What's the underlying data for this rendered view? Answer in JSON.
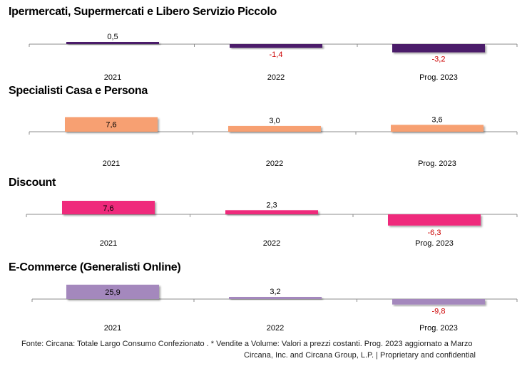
{
  "chart_data": [
    {
      "type": "bar",
      "title": "Ipermercati, Supermercati e Libero Servizio Piccolo",
      "categories": [
        "2021",
        "2022",
        "Prog. 2023"
      ],
      "values": [
        0.5,
        -1.4,
        -3.2
      ],
      "value_labels": [
        "0,5",
        "-1,4",
        "-3,2"
      ],
      "color": "#4b1a6b"
    },
    {
      "type": "bar",
      "title": "Specialisti Casa e Persona",
      "categories": [
        "2021",
        "2022",
        "Prog. 2023"
      ],
      "values": [
        7.6,
        3.0,
        3.6
      ],
      "value_labels": [
        "7,6",
        "3,0",
        "3,6"
      ],
      "color": "#f7a072"
    },
    {
      "type": "bar",
      "title": "Discount",
      "categories": [
        "2021",
        "2022",
        "Prog. 2023"
      ],
      "values": [
        7.6,
        2.3,
        -6.3
      ],
      "value_labels": [
        "7,6",
        "2,3",
        "-6,3"
      ],
      "color": "#ef2b7c"
    },
    {
      "type": "bar",
      "title": "E-Commerce (Generalisti Online)",
      "categories": [
        "2021",
        "2022",
        "Prog. 2023"
      ],
      "values": [
        25.9,
        3.2,
        -9.8
      ],
      "value_labels": [
        "25,9",
        "3,2",
        "-9,8"
      ],
      "color": "#a488bd"
    }
  ],
  "colors": {
    "negative_label": "#cc0000",
    "axis": "#8c8c8c"
  },
  "footer": {
    "source": "Fonte: Circana: Totale Largo Consumo Confezionato . * Vendite a Volume: Valori a prezzi costanti.  Prog. 2023 aggiornato a Marzo",
    "copyright": "Circana, Inc. and Circana Group, L.P. |  Proprietary and confidential"
  }
}
